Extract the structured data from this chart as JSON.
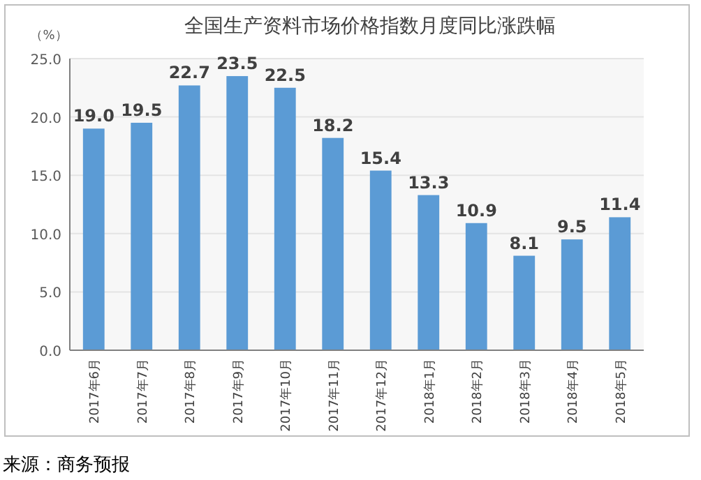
{
  "chart_data": {
    "type": "bar",
    "title": "全国生产资料市场价格指数月度同比涨跌幅",
    "ylabel": "（%）",
    "categories": [
      "2017年6月",
      "2017年7月",
      "2017年8月",
      "2017年9月",
      "2017年10月",
      "2017年11月",
      "2017年12月",
      "2018年1月",
      "2018年2月",
      "2018年3月",
      "2018年4月",
      "2018年5月"
    ],
    "values": [
      19.0,
      19.5,
      22.7,
      23.5,
      22.5,
      18.2,
      15.4,
      13.3,
      10.9,
      8.1,
      9.5,
      11.4
    ],
    "value_labels": [
      "19.0",
      "19.5",
      "22.7",
      "23.5",
      "22.5",
      "18.2",
      "15.4",
      "13.3",
      "10.9",
      "8.1",
      "9.5",
      "11.4"
    ],
    "color": "#5b9bd5",
    "ylim": [
      0,
      25
    ],
    "yticks": [
      {
        "value": 0,
        "label": "0.0"
      },
      {
        "value": 5,
        "label": "5.0"
      },
      {
        "value": 10,
        "label": "10.0"
      },
      {
        "value": 15,
        "label": "15.0"
      },
      {
        "value": 20,
        "label": "20.0"
      },
      {
        "value": 25,
        "label": "25.0"
      }
    ],
    "grid": "y",
    "annotations": [
      "来源：商务预报"
    ]
  }
}
